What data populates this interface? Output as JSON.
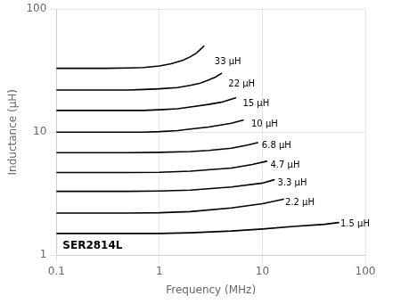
{
  "chart_data": {
    "type": "line",
    "xlabel": "Frequency (MHz)",
    "ylabel": "Inductance (μH)",
    "log": true,
    "grid": true,
    "color": "#000000",
    "xlim": [
      0.1,
      100
    ],
    "ylim": [
      1,
      100
    ],
    "xticks": [
      0.1,
      1,
      10,
      100
    ],
    "yticks": [
      1,
      10,
      100
    ],
    "annotations": [
      {
        "text": "SER2814L",
        "x": 0.115,
        "y": 1.08
      }
    ],
    "series": [
      {
        "name": "33 μH",
        "label_at": [
          3.3,
          37
        ],
        "x": [
          0.1,
          0.15,
          0.2,
          0.3,
          0.5,
          0.7,
          1.0,
          1.3,
          1.7,
          2.0,
          2.3,
          2.7
        ],
        "values": [
          33,
          33,
          33,
          33,
          33.2,
          33.5,
          34.5,
          36,
          38.5,
          41,
          44,
          50
        ]
      },
      {
        "name": "22 μH",
        "label_at": [
          4.5,
          24.5
        ],
        "x": [
          0.1,
          0.15,
          0.2,
          0.3,
          0.5,
          0.7,
          1.0,
          1.5,
          2.0,
          2.5,
          3.0,
          3.5,
          4.0
        ],
        "values": [
          22,
          22,
          22,
          22,
          22,
          22.2,
          22.5,
          23,
          24,
          25,
          26.5,
          28,
          30
        ]
      },
      {
        "name": "15 μH",
        "label_at": [
          6.2,
          17.0
        ],
        "x": [
          0.1,
          0.2,
          0.3,
          0.5,
          0.7,
          1.0,
          1.5,
          2.0,
          3.0,
          4.0,
          5.5
        ],
        "values": [
          15,
          15,
          15,
          15,
          15,
          15.2,
          15.5,
          16,
          16.8,
          17.5,
          19
        ]
      },
      {
        "name": "10 μH",
        "label_at": [
          7.5,
          11.5
        ],
        "x": [
          0.1,
          0.2,
          0.3,
          0.5,
          0.7,
          1.0,
          1.5,
          2.0,
          3.0,
          5.0,
          6.5
        ],
        "values": [
          10,
          10,
          10,
          10,
          10,
          10.1,
          10.3,
          10.6,
          11.0,
          11.8,
          12.5
        ]
      },
      {
        "name": "6.8 μH",
        "label_at": [
          9.5,
          7.8
        ],
        "x": [
          0.1,
          0.2,
          0.5,
          1.0,
          2.0,
          3.0,
          5.0,
          7.0,
          9.0
        ],
        "values": [
          6.8,
          6.8,
          6.8,
          6.85,
          6.95,
          7.1,
          7.4,
          7.8,
          8.2
        ]
      },
      {
        "name": "4.7 μH",
        "label_at": [
          11.5,
          5.4
        ],
        "x": [
          0.1,
          0.2,
          0.5,
          1.0,
          2.0,
          5.0,
          8.0,
          11.0
        ],
        "values": [
          4.7,
          4.7,
          4.7,
          4.72,
          4.82,
          5.1,
          5.45,
          5.8
        ]
      },
      {
        "name": "3.3 μH",
        "label_at": [
          13.5,
          3.85
        ],
        "x": [
          0.1,
          0.2,
          0.5,
          1.0,
          2.0,
          5.0,
          10.0,
          13.0
        ],
        "values": [
          3.3,
          3.3,
          3.3,
          3.32,
          3.38,
          3.58,
          3.85,
          4.1
        ]
      },
      {
        "name": "2.2 μH",
        "label_at": [
          16.0,
          2.65
        ],
        "x": [
          0.1,
          0.2,
          0.5,
          1.0,
          2.0,
          5.0,
          10.0,
          16.0
        ],
        "values": [
          2.2,
          2.2,
          2.2,
          2.21,
          2.26,
          2.42,
          2.62,
          2.85
        ]
      },
      {
        "name": "1.5 μH",
        "label_at": [
          55.0,
          1.78
        ],
        "x": [
          0.1,
          0.2,
          0.5,
          1.0,
          2.0,
          5.0,
          10.0,
          20.0,
          40.0,
          55.0
        ],
        "values": [
          1.5,
          1.5,
          1.5,
          1.5,
          1.52,
          1.57,
          1.63,
          1.71,
          1.78,
          1.84
        ]
      }
    ]
  }
}
